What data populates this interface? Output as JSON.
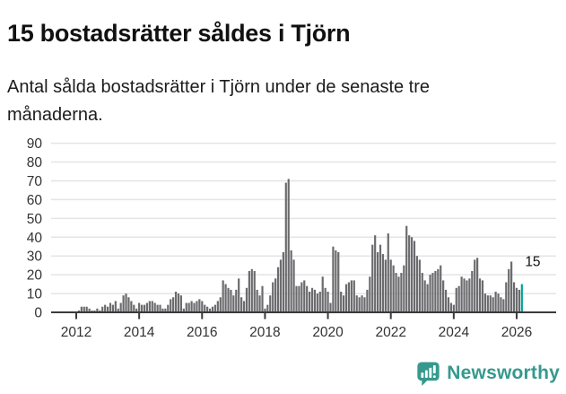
{
  "header": {
    "title": "15 bostadsrätter såldes i Tjörn",
    "subtitle": "Antal sålda bostadsrätter i Tjörn under de senaste tre månaderna.",
    "subtitle_lines": [
      "Antal sålda bostadsrätter i Tjörn under de senaste tre",
      "månaderna."
    ]
  },
  "chart_data": {
    "type": "bar",
    "title": "15 bostadsrätter såldes i Tjörn",
    "xlabel": "",
    "ylabel": "",
    "x_months": {
      "start": "2011-04",
      "end": "2026-03",
      "interval": "monthly"
    },
    "values": [
      0,
      0,
      0,
      0,
      0,
      0,
      0,
      0,
      0,
      0,
      1,
      3,
      3,
      3,
      2,
      1,
      1,
      2,
      1,
      3,
      4,
      3,
      5,
      4,
      6,
      2,
      5,
      9,
      10,
      8,
      6,
      4,
      2,
      5,
      4,
      4,
      5,
      6,
      6,
      5,
      4,
      4,
      2,
      2,
      4,
      7,
      8,
      11,
      10,
      9,
      2,
      5,
      5,
      6,
      5,
      6,
      7,
      6,
      4,
      3,
      2,
      3,
      4,
      6,
      8,
      17,
      15,
      13,
      12,
      9,
      12,
      18,
      8,
      6,
      13,
      22,
      23,
      22,
      12,
      9,
      14,
      2,
      4,
      9,
      16,
      18,
      24,
      28,
      32,
      69,
      71,
      33,
      28,
      14,
      14,
      16,
      17,
      14,
      11,
      13,
      12,
      10,
      11,
      19,
      13,
      11,
      5,
      35,
      33,
      32,
      11,
      9,
      15,
      16,
      17,
      17,
      9,
      8,
      9,
      8,
      12,
      19,
      36,
      41,
      32,
      36,
      31,
      28,
      42,
      28,
      25,
      21,
      19,
      21,
      25,
      46,
      41,
      40,
      38,
      30,
      28,
      21,
      17,
      15,
      20,
      21,
      22,
      23,
      25,
      17,
      12,
      8,
      5,
      4,
      13,
      14,
      19,
      18,
      17,
      18,
      22,
      28,
      29,
      18,
      17,
      10,
      9,
      9,
      8,
      11,
      10,
      8,
      7,
      16,
      23,
      27,
      16,
      13,
      12,
      15
    ],
    "highlight": {
      "index": 179,
      "value": 15,
      "label": "15"
    },
    "y_ticks": [
      0,
      10,
      20,
      30,
      40,
      50,
      60,
      70,
      80,
      90
    ],
    "ylim": [
      0,
      90
    ],
    "x_tick_labels": [
      "2012",
      "2014",
      "2016",
      "2018",
      "2020",
      "2022",
      "2024",
      "2026"
    ],
    "x_tick_years": [
      2012,
      2014,
      2016,
      2018,
      2020,
      2022,
      2024,
      2026
    ],
    "grid": true,
    "legend": "none",
    "colors": {
      "bar": "#6b6b6e",
      "highlight_bar": "#00a49c",
      "grid_line": "#e4e4e4",
      "axis_line": "#3a3a3a",
      "tick_text": "#333333",
      "annotation_text": "#111111"
    }
  },
  "annotation": {
    "last_value_label": "15"
  },
  "footer": {
    "brand": "Newsworthy",
    "brand_color": "#35998e",
    "logo_icon": "bar-chart-speech-bubble-icon"
  }
}
